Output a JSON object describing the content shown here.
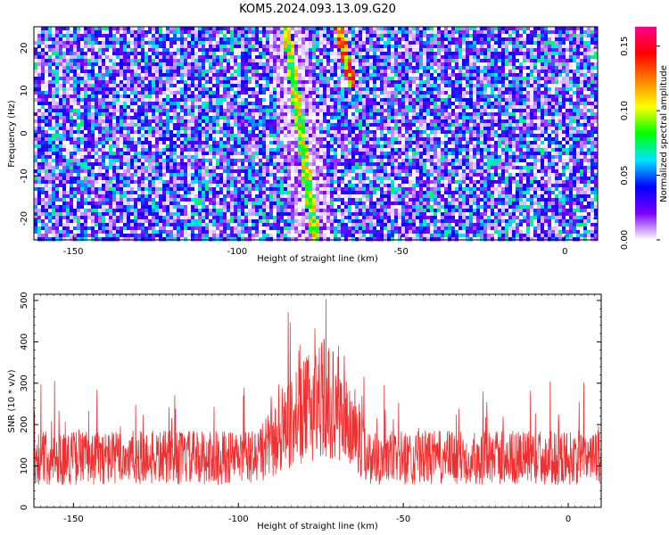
{
  "title": "KOM5.2024.093.13.09.G20",
  "chart_data": [
    {
      "type": "heatmap",
      "xlabel": "Height of straight line (km)",
      "ylabel": "Frequency (Hz)",
      "xlim": [
        -162,
        10
      ],
      "ylim": [
        -25,
        25
      ],
      "xticks": [
        -150,
        -100,
        -50,
        0
      ],
      "yticks": [
        -20,
        -10,
        0,
        10,
        20
      ],
      "colorbar": {
        "label": "Normalized spectral amplitude",
        "range": [
          0.0,
          0.165
        ],
        "ticks": [
          "0.00",
          "0.05",
          "0.10",
          "0.15"
        ],
        "colors": [
          "#ffffff",
          "#7a00ff",
          "#0000ff",
          "#00e5ff",
          "#00ff00",
          "#ffff00",
          "#ff8000",
          "#ff0000",
          "#ff0088"
        ]
      },
      "tracks": [
        {
          "from": [
            -85,
            25
          ],
          "to": [
            -76,
            -25
          ],
          "strength": 0.12
        },
        {
          "from": [
            -69,
            25
          ],
          "to": [
            -65,
            12
          ],
          "strength": 0.16
        }
      ]
    },
    {
      "type": "line",
      "xlabel": "Height of straight line (km)",
      "ylabel": "SNR (10 * v/v)",
      "xlim": [
        -162,
        10
      ],
      "ylim": [
        0,
        515
      ],
      "xticks": [
        -150,
        -100,
        -50,
        0
      ],
      "yticks": [
        0,
        100,
        200,
        300,
        400,
        500
      ],
      "color": "#f03030",
      "envelope": {
        "baseline": 120,
        "peak": [
          [
            -90,
            150
          ],
          [
            -80,
            230
          ],
          [
            -75,
            270
          ],
          [
            -70,
            240
          ],
          [
            -64,
            170
          ]
        ],
        "max_value": 510
      }
    }
  ]
}
